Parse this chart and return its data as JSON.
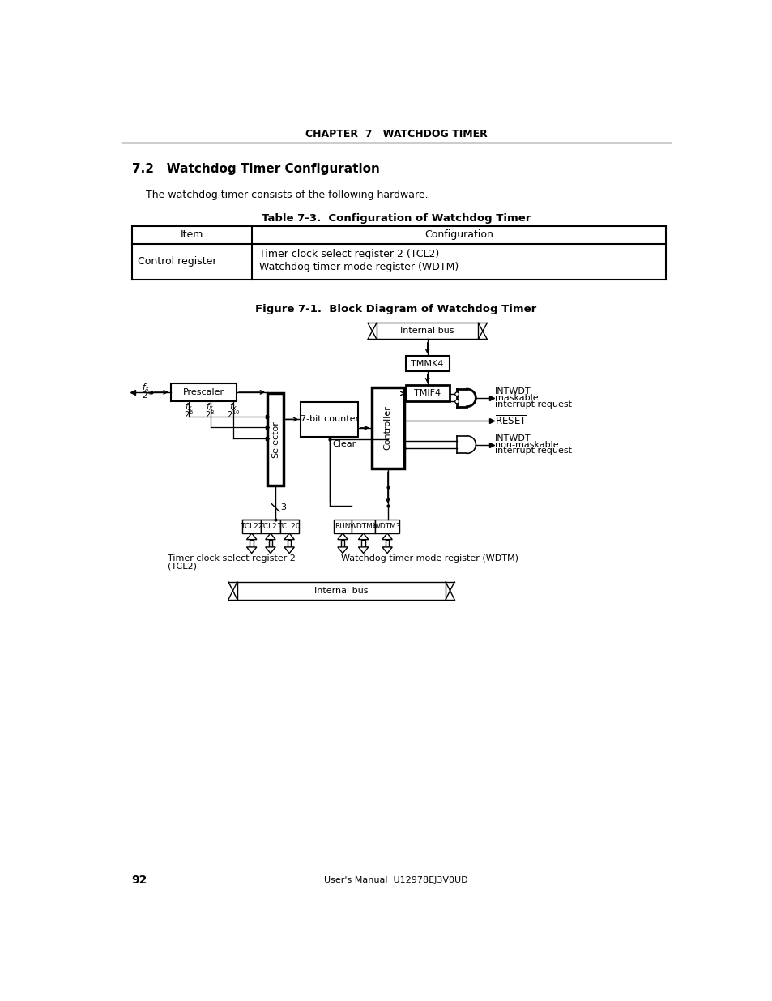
{
  "header": "CHAPTER  7   WATCHDOG TIMER",
  "section": "7.2   Watchdog Timer Configuration",
  "intro": "The watchdog timer consists of the following hardware.",
  "table_title": "Table 7-3.  Configuration of Watchdog Timer",
  "col1_hdr": "Item",
  "col2_hdr": "Configuration",
  "row1_c1": "Control register",
  "row1_c2a": "Timer clock select register 2 (TCL2)",
  "row1_c2b": "Watchdog timer mode register (WDTM)",
  "fig_title": "Figure 7-1.  Block Diagram of Watchdog Timer",
  "footer_num": "92",
  "footer_label": "User's Manual  U12978EJ3V0UD",
  "bg": "#ffffff"
}
